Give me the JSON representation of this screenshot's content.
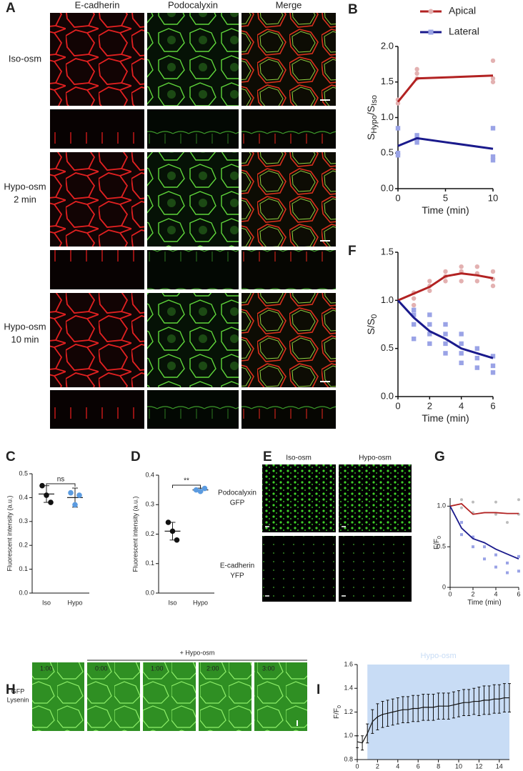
{
  "figure": {
    "panels": [
      "A",
      "B",
      "C",
      "D",
      "E",
      "F",
      "G",
      "H",
      "I"
    ],
    "a": {
      "columns": [
        "E-cadherin",
        "Podocalyxin",
        "Merge"
      ],
      "rows": [
        [
          "Iso-osm"
        ],
        [
          "Hypo-osm",
          "2 min"
        ],
        [
          "Hypo-osm",
          "10 min"
        ]
      ]
    },
    "e": {
      "columns": [
        "Iso-osm",
        "Hypo-osm"
      ],
      "rows": [
        [
          "Podocalyxin",
          "GFP"
        ],
        [
          "E-cadherin",
          "YFP"
        ]
      ]
    },
    "h": {
      "treatment": "+ Hypo-osm",
      "row_label": [
        "GFP",
        "Lysenin"
      ],
      "timestamps": [
        "1:00",
        "0:00",
        "1:00",
        "2:00",
        "3:00"
      ]
    }
  },
  "chart_data": [
    {
      "type": "line",
      "legend": true,
      "xlabel": "Time (min)",
      "ylabel": [
        "S",
        "Hypo",
        "/S",
        "Iso"
      ],
      "x": [
        0,
        2,
        10
      ],
      "xlim": [
        0,
        10
      ],
      "xticks": [
        0,
        5,
        10
      ],
      "ylim": [
        0,
        2
      ],
      "yticks": [
        {
          "value": 0,
          "label": "0.0"
        },
        {
          "value": 0.5,
          "label": "0.5"
        },
        {
          "value": 1,
          "label": "1.0"
        },
        {
          "value": 1.5,
          "label": "1.5"
        },
        {
          "value": 2,
          "label": "2.0"
        }
      ],
      "series": [
        {
          "name": "Apical",
          "color": "#b22222",
          "point_color": "#e3b1b1",
          "marker": "circle",
          "values": [
            1.22,
            1.55,
            1.59
          ],
          "points": [
            [
              0,
              1.2
            ],
            [
              0,
              1.25
            ],
            [
              2,
              1.55
            ],
            [
              2,
              1.62
            ],
            [
              2,
              1.68
            ],
            [
              10,
              1.5
            ],
            [
              10,
              1.55
            ],
            [
              10,
              1.8
            ]
          ]
        },
        {
          "name": "Lateral",
          "color": "#1a1a8c",
          "point_color": "#9aa3e6",
          "marker": "square",
          "values": [
            0.6,
            0.71,
            0.56
          ],
          "points": [
            [
              0,
              0.85
            ],
            [
              0,
              0.5
            ],
            [
              0,
              0.47
            ],
            [
              2,
              0.65
            ],
            [
              2,
              0.7
            ],
            [
              2,
              0.75
            ],
            [
              10,
              0.85
            ],
            [
              10,
              0.45
            ],
            [
              10,
              0.4
            ]
          ]
        }
      ]
    },
    {
      "type": "line",
      "legend": false,
      "xlabel": "Time (min)",
      "ylabel": [
        "S/S",
        "0"
      ],
      "x": [
        0,
        1,
        2,
        3,
        4,
        5,
        6
      ],
      "xlim": [
        0,
        6
      ],
      "xticks": [
        0,
        2,
        4,
        6
      ],
      "ylim": [
        0,
        1.5
      ],
      "yticks": [
        {
          "value": 0,
          "label": "0.0"
        },
        {
          "value": 0.5,
          "label": "0.5"
        },
        {
          "value": 1,
          "label": "1.0"
        },
        {
          "value": 1.5,
          "label": "1.5"
        }
      ],
      "series": [
        {
          "name": "Apical",
          "color": "#b22222",
          "point_color": "#e3b1b1",
          "marker": "circle",
          "values": [
            1,
            1.07,
            1.14,
            1.25,
            1.28,
            1.26,
            1.23
          ],
          "points": [
            [
              1,
              0.95
            ],
            [
              1,
              1.02
            ],
            [
              1,
              1.08
            ],
            [
              2,
              1.1
            ],
            [
              2,
              1.15
            ],
            [
              2,
              1.2
            ],
            [
              3,
              1.2
            ],
            [
              3,
              1.25
            ],
            [
              3,
              1.3
            ],
            [
              4,
              1.2
            ],
            [
              4,
              1.3
            ],
            [
              4,
              1.35
            ],
            [
              5,
              1.2
            ],
            [
              5,
              1.28
            ],
            [
              5,
              1.35
            ],
            [
              6,
              1.15
            ],
            [
              6,
              1.22
            ],
            [
              6,
              1.3
            ]
          ]
        },
        {
          "name": "Lateral",
          "color": "#1a1a8c",
          "point_color": "#9aa3e6",
          "marker": "square",
          "values": [
            1,
            0.82,
            0.68,
            0.6,
            0.5,
            0.45,
            0.4
          ],
          "points": [
            [
              1,
              0.6
            ],
            [
              1,
              0.75
            ],
            [
              1,
              0.85
            ],
            [
              1,
              0.9
            ],
            [
              2,
              0.55
            ],
            [
              2,
              0.65
            ],
            [
              2,
              0.75
            ],
            [
              2,
              0.85
            ],
            [
              3,
              0.45
            ],
            [
              3,
              0.55
            ],
            [
              3,
              0.65
            ],
            [
              3,
              0.75
            ],
            [
              4,
              0.35
            ],
            [
              4,
              0.45
            ],
            [
              4,
              0.55
            ],
            [
              4,
              0.65
            ],
            [
              5,
              0.3
            ],
            [
              5,
              0.4
            ],
            [
              5,
              0.5
            ],
            [
              6,
              0.25
            ],
            [
              6,
              0.32
            ],
            [
              6,
              0.42
            ]
          ]
        }
      ]
    },
    {
      "type": "dot",
      "ylabel": "Fluorescent intensity (a.u.)",
      "annotation": "ns",
      "categories": [
        "Iso",
        "Hypo"
      ],
      "colors": [
        "#111111",
        "#5b9be0"
      ],
      "points": [
        [
          0.45,
          0.41,
          0.38
        ],
        [
          0.42,
          0.37,
          0.41
        ]
      ],
      "means": [
        0.415,
        0.4
      ],
      "sd": [
        0.035,
        0.04
      ],
      "ylim": [
        0,
        0.5
      ],
      "yticks": [
        {
          "value": 0,
          "label": "0.0"
        },
        0.1,
        0.2,
        0.3,
        0.4,
        0.5
      ]
    },
    {
      "type": "dot",
      "ylabel": "Fluorescent intensity (a.u.)",
      "annotation": "**",
      "categories": [
        "Iso",
        "Hypo"
      ],
      "colors": [
        "#111111",
        "#5b9be0"
      ],
      "points": [
        [
          0.24,
          0.21,
          0.18
        ],
        [
          0.35,
          0.345,
          0.355
        ]
      ],
      "means": [
        0.21,
        0.35
      ],
      "sd": [
        0.03,
        0.006
      ],
      "ylim": [
        0,
        0.4
      ],
      "yticks": [
        {
          "value": 0,
          "label": "0.0"
        },
        0.1,
        0.2,
        0.3,
        0.4
      ]
    },
    {
      "type": "line",
      "legend": false,
      "xlabel": "Time (min)",
      "ylabel": [
        "F/F",
        "0"
      ],
      "x": [
        0,
        1,
        2,
        3,
        4,
        5,
        6
      ],
      "xlim": [
        0,
        6
      ],
      "xticks": [
        0,
        2,
        4,
        6
      ],
      "ylim": [
        0,
        1.1
      ],
      "yticks": [
        0,
        0.5,
        {
          "value": 1,
          "label": "1.0"
        }
      ],
      "series": [
        {
          "name": "Apical",
          "color": "#b22222",
          "point_color": "#bdbdbd",
          "marker": "circle",
          "values": [
            1,
            1.03,
            0.9,
            0.92,
            0.92,
            0.91,
            0.91
          ],
          "points": [
            [
              1,
              1.08
            ],
            [
              1,
              0.98
            ],
            [
              2,
              1.05
            ],
            [
              2,
              0.92
            ],
            [
              4,
              1.05
            ],
            [
              4,
              0.9
            ],
            [
              5,
              0.8
            ],
            [
              6,
              1.08
            ],
            [
              6,
              0.9
            ]
          ]
        },
        {
          "name": "Lateral",
          "color": "#1a1a8c",
          "point_color": "#9aa3e6",
          "marker": "square",
          "values": [
            1,
            0.73,
            0.6,
            0.55,
            0.47,
            0.41,
            0.35
          ],
          "points": [
            [
              1,
              0.8
            ],
            [
              1,
              0.65
            ],
            [
              2,
              0.5
            ],
            [
              2,
              0.62
            ],
            [
              3,
              0.5
            ],
            [
              3,
              0.35
            ],
            [
              4,
              0.4
            ],
            [
              4,
              0.25
            ],
            [
              5,
              0.3
            ],
            [
              5,
              0.18
            ],
            [
              6,
              0.38
            ],
            [
              6,
              0.2
            ]
          ]
        }
      ]
    },
    {
      "type": "line_error",
      "xlabel": "Time (min)",
      "ylabel": [
        "F/F",
        "0"
      ],
      "color": "#111111",
      "shade": {
        "xlim": [
          1,
          15
        ],
        "label": "Hypo-osm",
        "color": "#c8dcf5"
      },
      "x": [
        0,
        0.5,
        1,
        1.5,
        2,
        2.5,
        3,
        3.5,
        4,
        4.5,
        5,
        5.5,
        6,
        6.5,
        7,
        7.5,
        8,
        8.5,
        9,
        9.5,
        10,
        10.5,
        11,
        11.5,
        12,
        12.5,
        13,
        13.5,
        14,
        14.5,
        15
      ],
      "values": [
        0.95,
        0.94,
        1.02,
        1.12,
        1.16,
        1.18,
        1.19,
        1.2,
        1.21,
        1.22,
        1.22,
        1.23,
        1.23,
        1.24,
        1.24,
        1.24,
        1.25,
        1.25,
        1.25,
        1.26,
        1.27,
        1.28,
        1.28,
        1.29,
        1.29,
        1.3,
        1.3,
        1.31,
        1.31,
        1.32,
        1.32
      ],
      "errors": [
        0.05,
        0.06,
        0.08,
        0.1,
        0.11,
        0.11,
        0.11,
        0.11,
        0.11,
        0.11,
        0.11,
        0.11,
        0.11,
        0.11,
        0.11,
        0.11,
        0.11,
        0.11,
        0.11,
        0.11,
        0.11,
        0.11,
        0.11,
        0.11,
        0.12,
        0.12,
        0.12,
        0.12,
        0.12,
        0.12,
        0.12
      ],
      "xlim": [
        0,
        15
      ],
      "xticks": [
        0,
        2,
        4,
        6,
        8,
        10,
        12,
        14
      ],
      "ylim": [
        0.8,
        1.6
      ],
      "yticks": [
        {
          "value": 0.8,
          "label": "0.8"
        },
        {
          "value": 1,
          "label": "1.0"
        },
        {
          "value": 1.2,
          "label": "1.2"
        },
        {
          "value": 1.4,
          "label": "1.4"
        },
        {
          "value": 1.6,
          "label": "1.6"
        }
      ]
    }
  ]
}
